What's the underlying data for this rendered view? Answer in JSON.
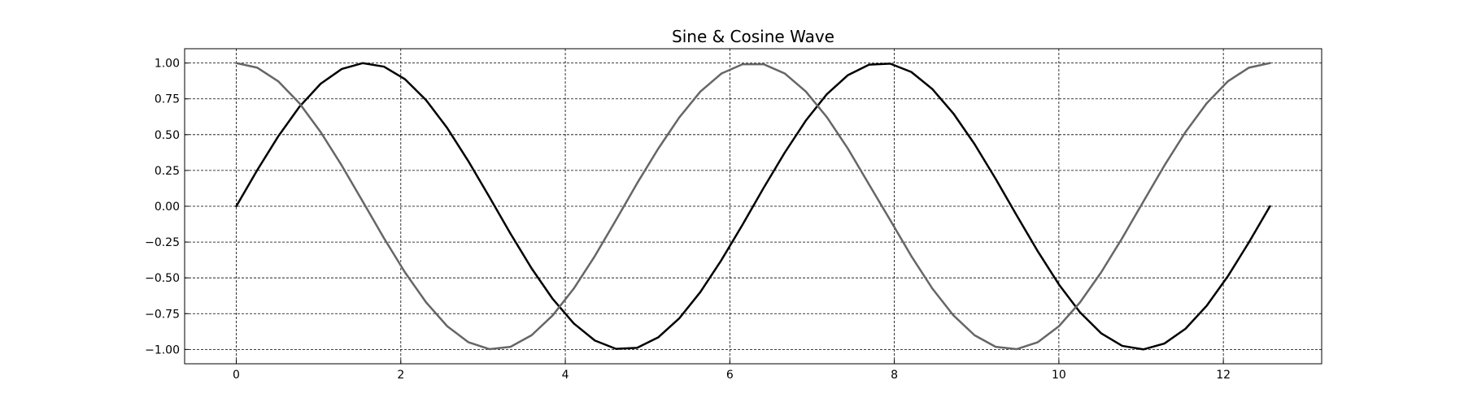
{
  "chart_data": {
    "type": "line",
    "title": "Sine & Cosine Wave",
    "xlabel": "",
    "ylabel": "",
    "xlim": [
      -0.628,
      13.195
    ],
    "ylim": [
      -1.1,
      1.1
    ],
    "x_ticks": [
      0,
      2,
      4,
      6,
      8,
      10,
      12
    ],
    "x_tick_labels": [
      "0",
      "2",
      "4",
      "6",
      "8",
      "10",
      "12"
    ],
    "y_ticks": [
      1.0,
      0.75,
      0.5,
      0.25,
      0.0,
      -0.25,
      -0.5,
      -0.75,
      -1.0
    ],
    "y_tick_labels": [
      "1.00",
      "0.75",
      "0.50",
      "0.25",
      "0.00",
      "−0.25",
      "−0.50",
      "−0.75",
      "−1.00"
    ],
    "grid": true,
    "x": [
      0,
      0.2564,
      0.5129,
      0.7693,
      1.0257,
      1.2822,
      1.5386,
      1.795,
      2.0515,
      2.3079,
      2.5643,
      2.8208,
      3.0772,
      3.3336,
      3.5901,
      3.8465,
      4.1029,
      4.3594,
      4.6158,
      4.8722,
      5.1287,
      5.3851,
      5.6415,
      5.898,
      6.1544,
      6.4108,
      6.6673,
      6.9237,
      7.1801,
      7.4366,
      7.693,
      7.9494,
      8.2059,
      8.4623,
      8.7187,
      8.9752,
      9.2316,
      9.488,
      9.7445,
      10.0009,
      10.2573,
      10.5138,
      10.7702,
      11.0266,
      11.2831,
      11.5395,
      11.7959,
      12.0524,
      12.3088,
      12.5664
    ],
    "series": [
      {
        "color": "#000000",
        "values": [
          0,
          0.2536,
          0.4907,
          0.6958,
          0.8554,
          0.9587,
          0.9995,
          0.975,
          0.8869,
          0.7409,
          0.5462,
          0.3152,
          0.0644,
          -0.1912,
          -0.4338,
          -0.6471,
          -0.8182,
          -0.9377,
          -0.9959,
          -0.9885,
          -0.9158,
          -0.783,
          -0.5991,
          -0.3757,
          -0.1288,
          0.1279,
          0.3742,
          0.5981,
          0.783,
          0.9158,
          0.9885,
          0.9959,
          0.9377,
          0.8182,
          0.6471,
          0.4338,
          0.1912,
          -0.0644,
          -0.3152,
          -0.5462,
          -0.7409,
          -0.8869,
          -0.975,
          -0.9995,
          -0.9587,
          -0.8554,
          -0.6958,
          -0.4907,
          -0.2536,
          0
        ]
      },
      {
        "color": "#666666",
        "values": [
          1,
          0.9673,
          0.8713,
          0.7182,
          0.5181,
          0.2844,
          0.0322,
          -0.2225,
          -0.4621,
          -0.6713,
          -0.8377,
          -0.9491,
          -0.9979,
          -0.9815,
          -0.9009,
          -0.7624,
          -0.5749,
          -0.3474,
          -0.0966,
          0.1597,
          0.4011,
          0.6197,
          0.8007,
          0.9267,
          0.9917,
          0.9918,
          0.9273,
          0.8013,
          0.6219,
          0.4014,
          0.1517,
          -0.0966,
          -0.3474,
          -0.5749,
          -0.7624,
          -0.9009,
          -0.9815,
          -0.9979,
          -0.9491,
          -0.8377,
          -0.6713,
          -0.4621,
          -0.2225,
          0.0322,
          0.2844,
          0.5181,
          0.7182,
          0.8713,
          0.9673,
          1
        ]
      }
    ]
  }
}
